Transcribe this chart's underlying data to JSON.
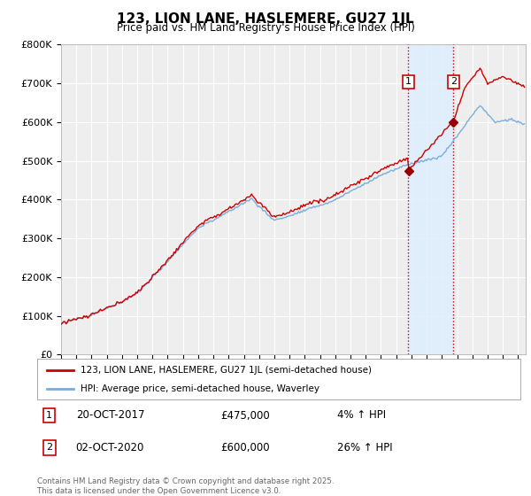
{
  "title": "123, LION LANE, HASLEMERE, GU27 1JL",
  "subtitle": "Price paid vs. HM Land Registry's House Price Index (HPI)",
  "ylim": [
    0,
    800000
  ],
  "yticks": [
    0,
    100000,
    200000,
    300000,
    400000,
    500000,
    600000,
    700000,
    800000
  ],
  "ytick_labels": [
    "£0",
    "£100K",
    "£200K",
    "£300K",
    "£400K",
    "£500K",
    "£600K",
    "£700K",
    "£800K"
  ],
  "background_color": "#ffffff",
  "plot_bg_color": "#eeeeee",
  "grid_color": "#ffffff",
  "line1_color": "#cc0000",
  "line2_color": "#7aaddc",
  "purchase1_x": 2017.8,
  "purchase1_price": 475000,
  "purchase2_x": 2020.75,
  "purchase2_price": 600000,
  "vline_color": "#cc0000",
  "shade_color": "#ddeeff",
  "legend1_label": "123, LION LANE, HASLEMERE, GU27 1JL (semi-detached house)",
  "legend2_label": "HPI: Average price, semi-detached house, Waverley",
  "footer": "Contains HM Land Registry data © Crown copyright and database right 2025.\nThis data is licensed under the Open Government Licence v3.0.",
  "xmin": 1995,
  "xmax": 2025.5
}
